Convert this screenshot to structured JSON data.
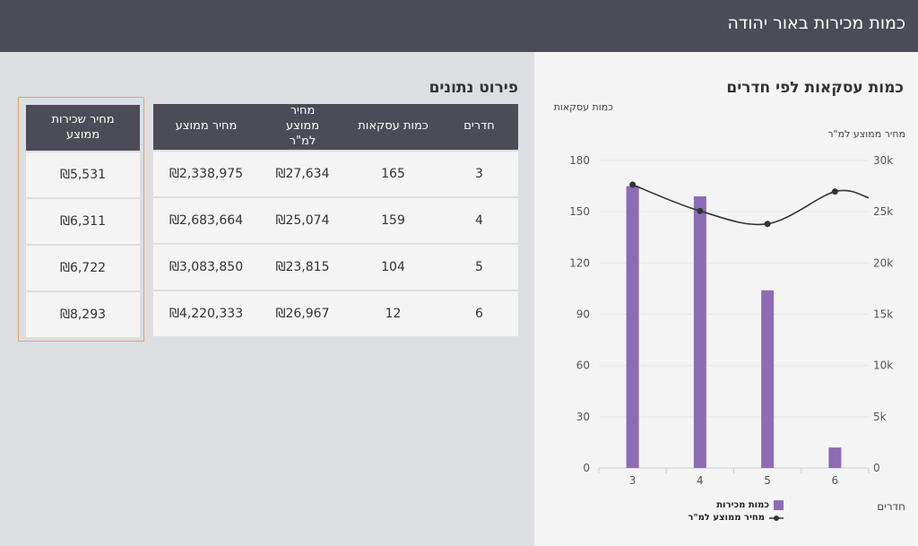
{
  "header": {
    "title": "כמות מכירות באור יהודה"
  },
  "chart_section": {
    "title": "כמות עסקאות לפי חדרים",
    "left_axis_note": "כמות עסקאות",
    "right_axis_note": "מחיר ממוצע למ\"ר",
    "x_axis_note": "חדרים"
  },
  "chart_data": {
    "type": "bar",
    "categories": [
      "3",
      "4",
      "5",
      "6"
    ],
    "series": [
      {
        "name": "כמות מכירות",
        "type": "bar",
        "axis": "left",
        "values": [
          165,
          159,
          104,
          12
        ],
        "color": "#8e6bb5"
      },
      {
        "name": "מחיר ממוצע למ\"ר",
        "type": "line",
        "axis": "right",
        "values": [
          27634,
          25074,
          23815,
          26967
        ],
        "color": "#333333"
      }
    ],
    "left_axis": {
      "ylim": [
        0,
        180
      ],
      "ticks": [
        "0",
        "30",
        "60",
        "90",
        "120",
        "150",
        "180"
      ]
    },
    "right_axis": {
      "ylim": [
        0,
        30000
      ],
      "ticks": [
        "0",
        "5k",
        "10k",
        "15k",
        "20k",
        "25k",
        "30k"
      ]
    },
    "xlabel": "חדרים",
    "grid": true,
    "legend": "bottom"
  },
  "table_section": {
    "title": "פירוט נתונים",
    "headers": {
      "rooms": "חדרים",
      "deals": "כמות עסקאות",
      "sqm_price": "מחיר ממוצע למ\"ר",
      "avg_price": "מחיר ממוצע"
    },
    "rows": [
      {
        "rooms": "3",
        "deals": "165",
        "sqm_price": "₪27,634",
        "avg_price": "₪2,338,975"
      },
      {
        "rooms": "4",
        "deals": "159",
        "sqm_price": "₪25,074",
        "avg_price": "₪2,683,664"
      },
      {
        "rooms": "5",
        "deals": "104",
        "sqm_price": "₪23,815",
        "avg_price": "₪3,083,850"
      },
      {
        "rooms": "6",
        "deals": "12",
        "sqm_price": "₪26,967",
        "avg_price": "₪4,220,333"
      }
    ]
  },
  "rent_section": {
    "header": "מחיר שכירות ממוצע",
    "values": [
      "₪5,531",
      "₪6,311",
      "₪6,722",
      "₪8,293"
    ]
  }
}
